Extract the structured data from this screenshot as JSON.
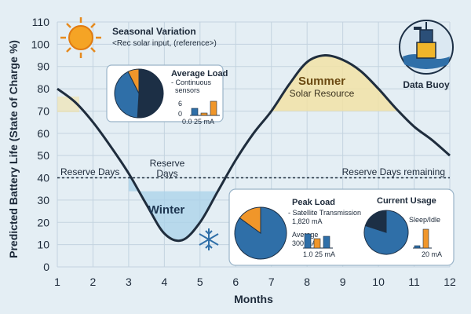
{
  "chart_data": {
    "type": "line",
    "xlabel": "Months",
    "ylabel": "Predicted Battery Life (State of Charge %)",
    "xlim": [
      1,
      12
    ],
    "ylim": [
      0,
      110
    ],
    "x_ticks": [
      1,
      2,
      3,
      4,
      5,
      6,
      7,
      8,
      9,
      10,
      11,
      12
    ],
    "y_ticks": [
      0,
      10,
      20,
      30,
      40,
      50,
      60,
      70,
      80,
      90,
      100,
      110
    ],
    "grid": true,
    "x": [
      1,
      1.5,
      2,
      2.5,
      3,
      3.5,
      4,
      4.5,
      5,
      5.5,
      6,
      6.5,
      7,
      7.5,
      8,
      8.5,
      9,
      9.5,
      10,
      10.5,
      11,
      11.5,
      12
    ],
    "values": [
      80,
      74,
      65,
      54,
      42,
      28,
      15,
      12,
      20,
      34,
      48,
      60,
      70,
      82,
      92,
      95,
      93,
      88,
      80,
      71,
      63,
      57,
      50
    ],
    "threshold": {
      "value": 40,
      "label_left": "Reserve Days",
      "label_right": "Reserve Days remaining"
    },
    "colors": {
      "line": "#1f2d3d",
      "winter": "#a9d1ea",
      "summer": "#f2e2a6",
      "pie_blue": "#2f6fa8",
      "pie_dark": "#1c2f45",
      "pie_orange": "#f0962a"
    },
    "annotations": {
      "title": "Seasonal Variation",
      "subtitle": "<Rec solar input, (reference>)",
      "winter_label": "Winter",
      "reserve_label_1": "Reserve",
      "reserve_label_2": "Days",
      "summer_label": "Summer",
      "summer_sub": "Solar Resource",
      "buoy_label": "Data Buoy"
    },
    "insets": {
      "average_load": {
        "title": "Average Load",
        "line1": "- Continuous",
        "line2": "sensors",
        "pie": [
          55,
          45
        ],
        "ticks_y": [
          "6",
          "0"
        ],
        "ticks_x": "0.0  25 mA",
        "bars": [
          3,
          1,
          6
        ]
      },
      "peak_load": {
        "title": "Peak Load",
        "line1": "- Satellite Transmission",
        "line2": "1,820 mA",
        "line3": "Average",
        "line4": "300 mA",
        "pie": [
          85,
          15
        ],
        "ticks_x": "1.0  25 mA",
        "bars": [
          6,
          4,
          5
        ]
      },
      "current_usage": {
        "title": "Current Usage",
        "line1": "Sleep/Idle",
        "pie": [
          80,
          20
        ],
        "ticks_x": "20 mA",
        "bars": [
          1,
          8
        ]
      }
    }
  }
}
